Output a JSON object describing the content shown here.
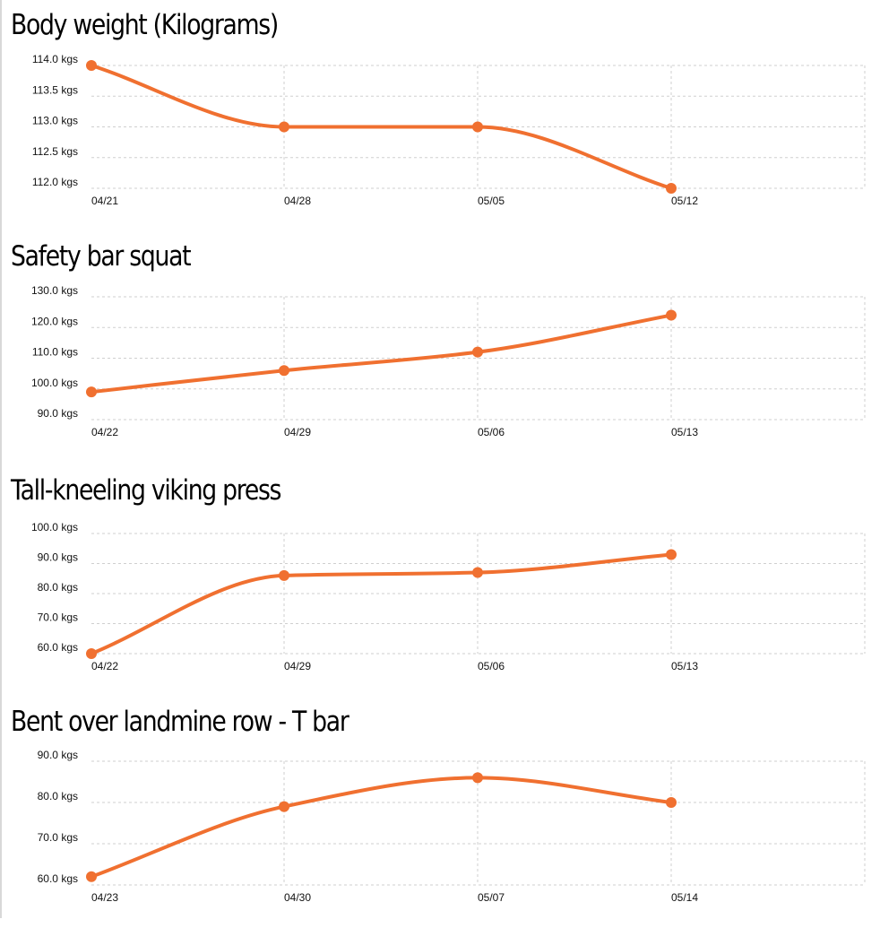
{
  "style": {
    "series_color": "#F07030",
    "grid_color": "#cfcfcf"
  },
  "chart_data": [
    {
      "type": "line",
      "title": "Body weight (Kilograms)",
      "x": [
        "04/21",
        "04/28",
        "05/05",
        "05/12"
      ],
      "yticks": [
        "112.0 kgs",
        "112.5 kgs",
        "113.0 kgs",
        "113.5 kgs",
        "114.0 kgs"
      ],
      "ylim": [
        112.0,
        114.0
      ],
      "series": [
        {
          "values": [
            114.0,
            113.0,
            113.0,
            112.0
          ]
        }
      ],
      "grid": true,
      "smooth": true
    },
    {
      "type": "line",
      "title": "Safety bar squat",
      "x": [
        "04/22",
        "04/29",
        "05/06",
        "05/13"
      ],
      "yticks": [
        "90.0 kgs",
        "100.0 kgs",
        "110.0 kgs",
        "120.0 kgs",
        "130.0 kgs"
      ],
      "ylim": [
        90.0,
        130.0
      ],
      "series": [
        {
          "values": [
            99,
            106,
            112,
            124
          ]
        }
      ],
      "grid": true,
      "smooth": true
    },
    {
      "type": "line",
      "title": "Tall-kneeling viking press",
      "x": [
        "04/22",
        "04/29",
        "05/06",
        "05/13"
      ],
      "yticks": [
        "60.0 kgs",
        "70.0 kgs",
        "80.0 kgs",
        "90.0 kgs",
        "100.0 kgs"
      ],
      "ylim": [
        60.0,
        100.0
      ],
      "series": [
        {
          "values": [
            60,
            86,
            87,
            93
          ]
        }
      ],
      "grid": true,
      "smooth": true
    },
    {
      "type": "line",
      "title": "Bent over landmine row - T bar",
      "x": [
        "04/23",
        "04/30",
        "05/07",
        "05/14"
      ],
      "yticks": [
        "60.0 kgs",
        "70.0 kgs",
        "80.0 kgs",
        "90.0 kgs"
      ],
      "ylim": [
        60.0,
        90.0
      ],
      "series": [
        {
          "values": [
            62,
            79,
            86,
            80
          ]
        }
      ],
      "grid": true,
      "smooth": true
    }
  ]
}
